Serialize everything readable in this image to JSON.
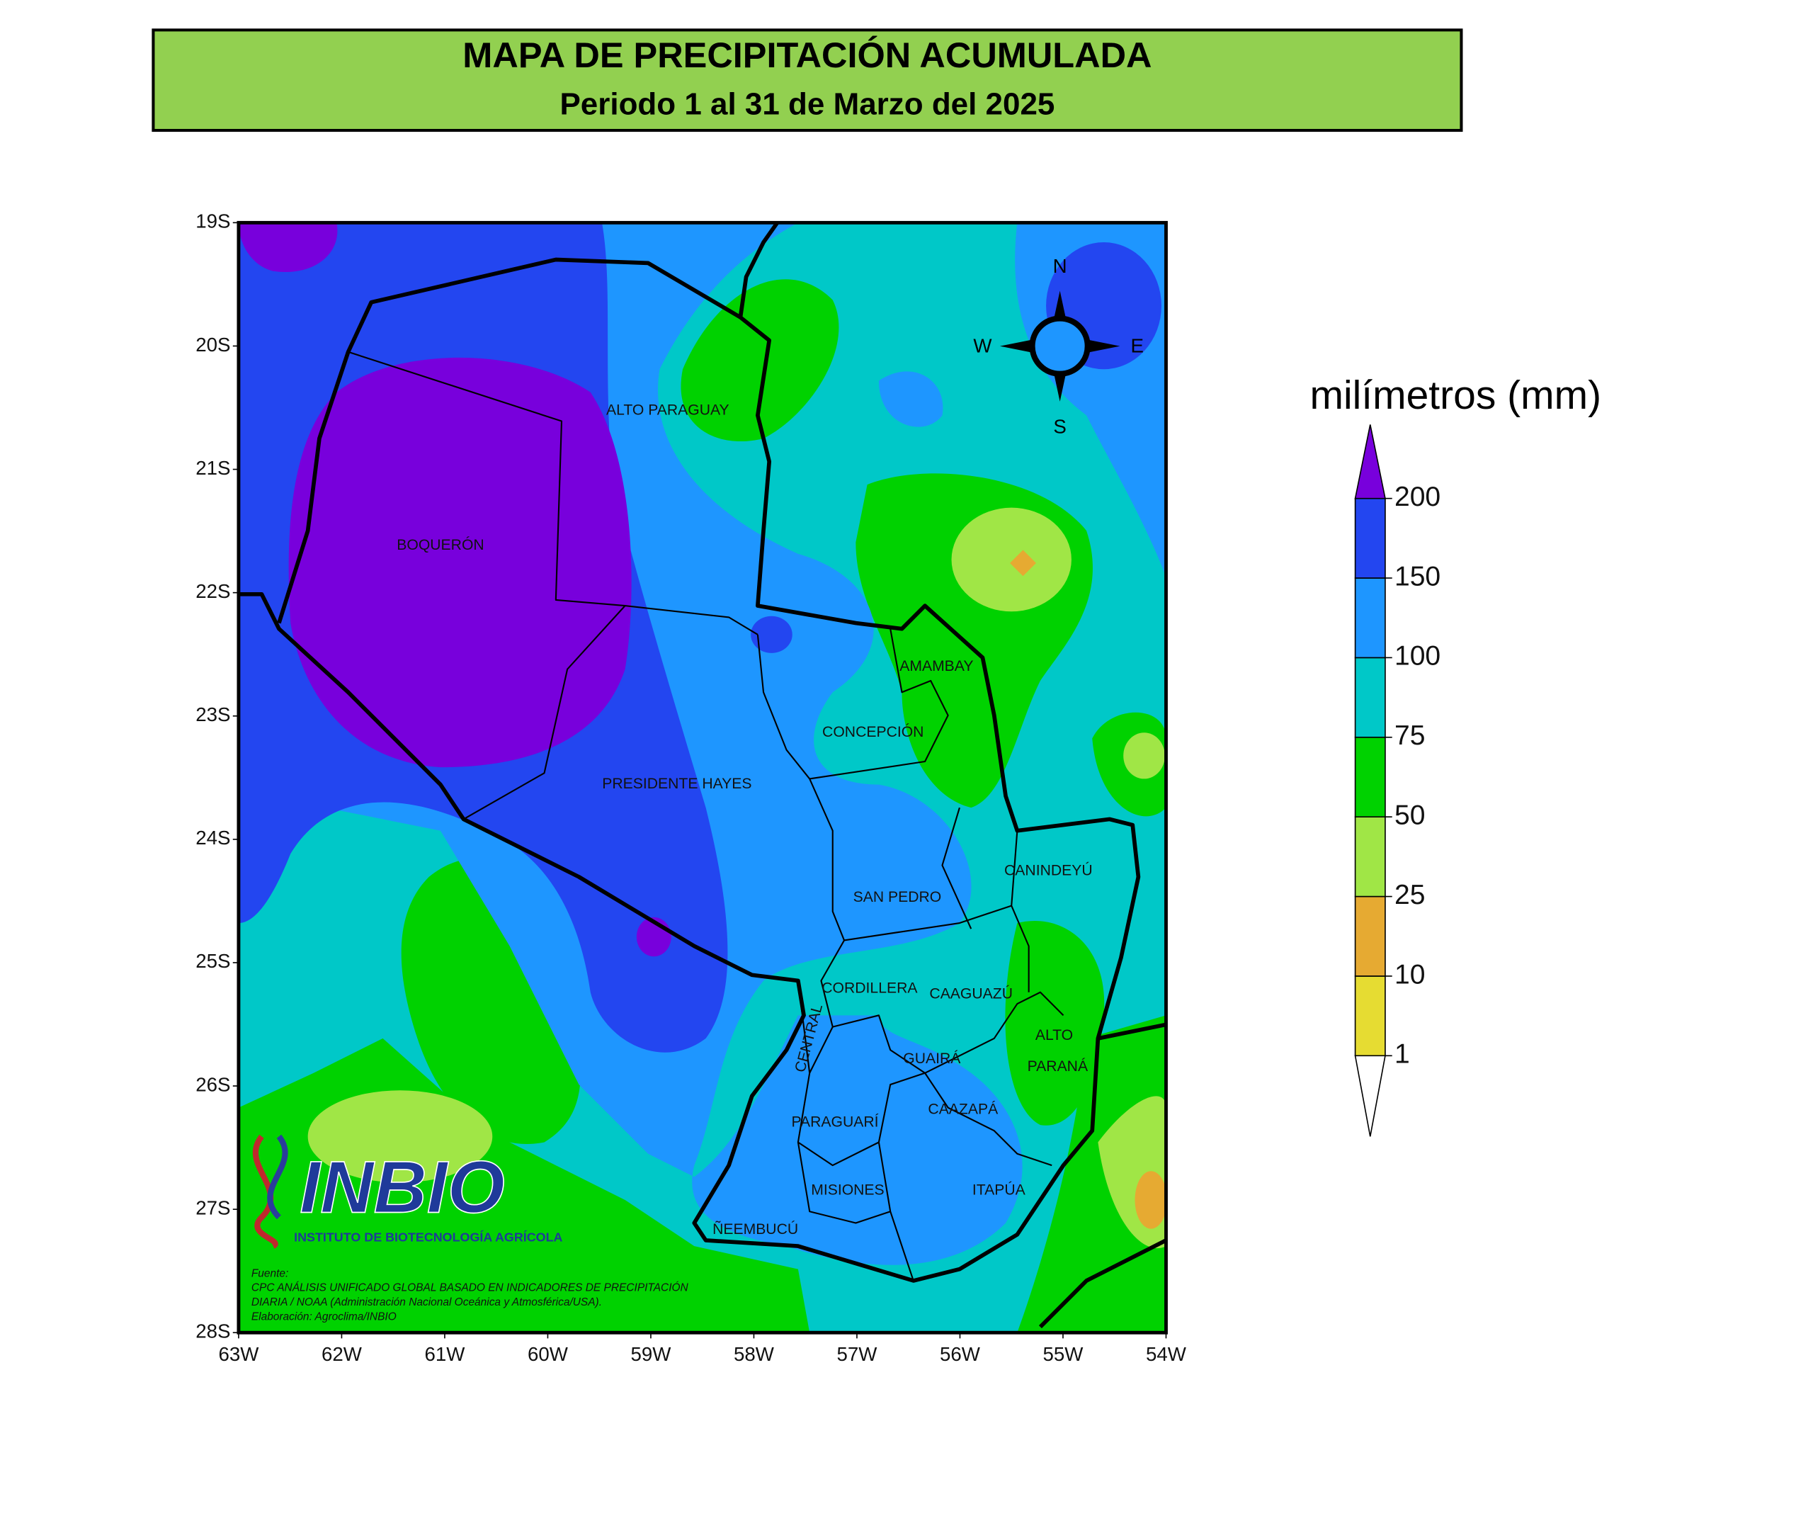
{
  "header": {
    "title": "MAPA DE PRECIPITACIÓN ACUMULADA",
    "subtitle": "Periodo 1 al 31 de Marzo del 2025"
  },
  "map": {
    "lat_ticks": [
      "19S",
      "20S",
      "21S",
      "22S",
      "23S",
      "24S",
      "25S",
      "26S",
      "27S",
      "28S"
    ],
    "lon_ticks": [
      "63W",
      "62W",
      "61W",
      "60W",
      "59W",
      "58W",
      "57W",
      "56W",
      "55W",
      "54W"
    ],
    "regions": [
      "ALTO PARAGUAY",
      "BOQUERÓN",
      "AMAMBAY",
      "CONCEPCIÓN",
      "PRESIDENTE HAYES",
      "CANINDEYÚ",
      "SAN PEDRO",
      "CORDILLERA",
      "CAAGUAZÚ",
      "ALTO",
      "PARANÁ",
      "CENTRAL",
      "GUAIRÁ",
      "PARAGUARÍ",
      "CAAZAPÁ",
      "MISIONES",
      "ITAPÚA",
      "ÑEEMBUCÚ"
    ],
    "compass": {
      "n": "N",
      "s": "S",
      "w": "W",
      "e": "E"
    }
  },
  "legend": {
    "title": "milímetros (mm)",
    "levels": [
      1,
      10,
      25,
      50,
      75,
      100,
      150,
      200
    ],
    "colors": [
      "#e6dc32",
      "#e6aa32",
      "#a0e646",
      "#00d200",
      "#00c8c8",
      "#1e96ff",
      "#2346f0"
    ],
    "over_color": "#7800dc",
    "under_color": "#ffffff"
  },
  "logo": {
    "name": "INBIO",
    "subtitle": "INSTITUTO DE BIOTECNOLOGÍA AGRÍCOLA"
  },
  "source": {
    "lines": [
      "Fuente:",
      "CPC ANÁLISIS UNIFICADO GLOBAL BASADO EN INDICADORES DE PRECIPITACIÓN",
      "DIARIA / NOAA (Administración Nacional Oceánica y Atmosférica/USA).",
      "Elaboración: Agroclima/INBIO"
    ]
  }
}
